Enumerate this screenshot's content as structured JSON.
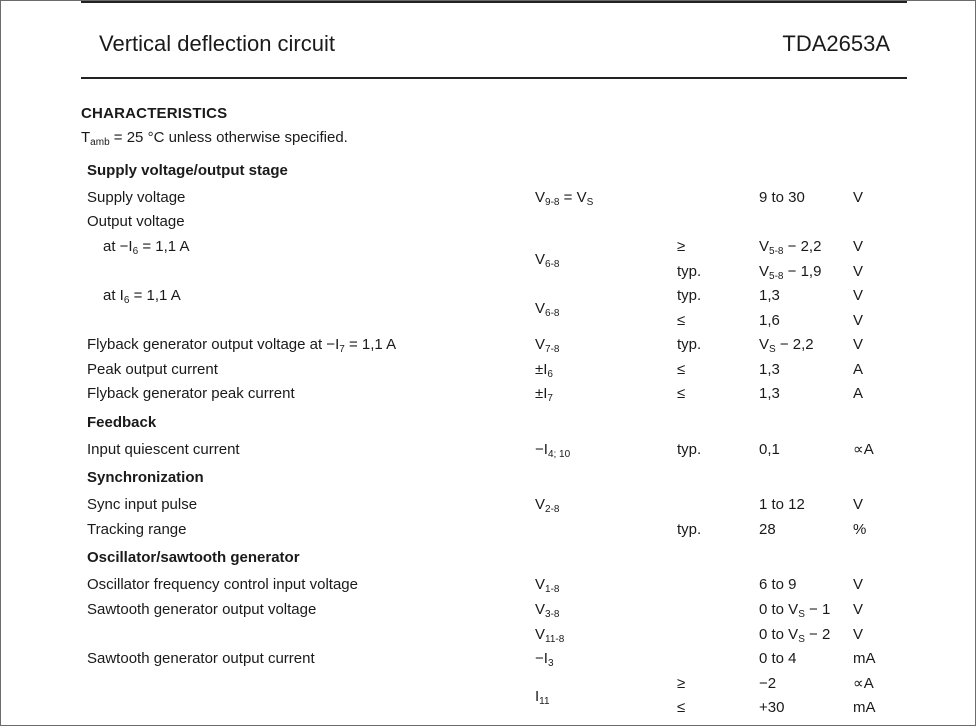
{
  "header": {
    "title": "Vertical deflection circuit",
    "part_number": "TDA2653A"
  },
  "section": {
    "title": "CHARACTERISTICS",
    "condition": {
      "symbol": "T",
      "sub": "amb",
      "text": " = 25 °C unless otherwise specified."
    }
  },
  "groups": [
    {
      "title": "Supply voltage/output stage"
    },
    {
      "title": "Feedback"
    },
    {
      "title": "Synchronization"
    },
    {
      "title": "Oscillator/sawtooth generator"
    }
  ],
  "rows": [
    {
      "param": {
        "p": "Supply voltage"
      },
      "symbol": {
        "p": "V",
        "s": "9-8",
        "q": " = V",
        "s2": "S"
      },
      "value": {
        "p": "9 to 30"
      },
      "unit": "V"
    },
    {
      "param": {
        "p": "Output voltage"
      }
    },
    {
      "param": {
        "p": "at −I",
        "s": "6",
        "q": " = 1,1 A"
      },
      "symbol": {
        "p": "V",
        "s": "6-8"
      },
      "qualifier": "≥",
      "value": {
        "p": "V",
        "s": "5-8",
        "q": " − 2,2"
      },
      "unit": "V"
    },
    {
      "qualifier": "typ.",
      "value": {
        "p": "V",
        "s": "5-8",
        "q": " − 1,9"
      },
      "unit": "V"
    },
    {
      "param": {
        "p": "at I",
        "s": "6",
        "q": " = 1,1 A"
      },
      "symbol": {
        "p": "V",
        "s": "6-8"
      },
      "qualifier": "typ.",
      "value": {
        "p": "1,3"
      },
      "unit": "V"
    },
    {
      "qualifier": "≤",
      "value": {
        "p": "1,6"
      },
      "unit": "V"
    },
    {
      "param": {
        "p": "Flyback generator output voltage at −I",
        "s": "7",
        "q": " = 1,1 A"
      },
      "symbol": {
        "p": "V",
        "s": "7-8"
      },
      "qualifier": "typ.",
      "value": {
        "p": "V",
        "s": "S",
        "q": " − 2,2"
      },
      "unit": "V"
    },
    {
      "param": {
        "p": "Peak output current"
      },
      "symbol": {
        "p": "±I",
        "s": "6"
      },
      "qualifier": "≤",
      "value": {
        "p": "1,3"
      },
      "unit": "A"
    },
    {
      "param": {
        "p": "Flyback generator peak current"
      },
      "symbol": {
        "p": "±I",
        "s": "7"
      },
      "qualifier": "≤",
      "value": {
        "p": "1,3"
      },
      "unit": "A"
    },
    {
      "param": {
        "p": "Input quiescent current"
      },
      "symbol": {
        "p": "−I",
        "s": "4; 10"
      },
      "qualifier": "typ.",
      "value": {
        "p": "0,1"
      },
      "unit": "∝A"
    },
    {
      "param": {
        "p": "Sync input pulse"
      },
      "symbol": {
        "p": "V",
        "s": "2-8"
      },
      "value": {
        "p": "1 to 12"
      },
      "unit": "V"
    },
    {
      "param": {
        "p": "Tracking range"
      },
      "qualifier": "typ.",
      "value": {
        "p": "28"
      },
      "unit": "%"
    },
    {
      "param": {
        "p": "Oscillator frequency control input voltage"
      },
      "symbol": {
        "p": "V",
        "s": "1-8"
      },
      "value": {
        "p": "6 to 9"
      },
      "unit": "V"
    },
    {
      "param": {
        "p": "Sawtooth generator output voltage"
      },
      "symbol": {
        "p": "V",
        "s": "3-8"
      },
      "value": {
        "p": "0 to V",
        "s": "S",
        "q": " − 1"
      },
      "unit": "V"
    },
    {
      "symbol": {
        "p": "V",
        "s": "11-8"
      },
      "value": {
        "p": "0 to V",
        "s": "S",
        "q": " − 2"
      },
      "unit": "V"
    },
    {
      "param": {
        "p": "Sawtooth generator output current"
      },
      "symbol": {
        "p": "−I",
        "s": "3"
      },
      "value": {
        "p": "0 to 4"
      },
      "unit": "mA"
    },
    {
      "symbol": {
        "p": "I",
        "s": "11"
      },
      "qualifier": "≥",
      "value": {
        "p": "−2"
      },
      "unit": "∝A"
    },
    {
      "qualifier": "≤",
      "value": {
        "p": "+30"
      },
      "unit": "mA"
    }
  ]
}
